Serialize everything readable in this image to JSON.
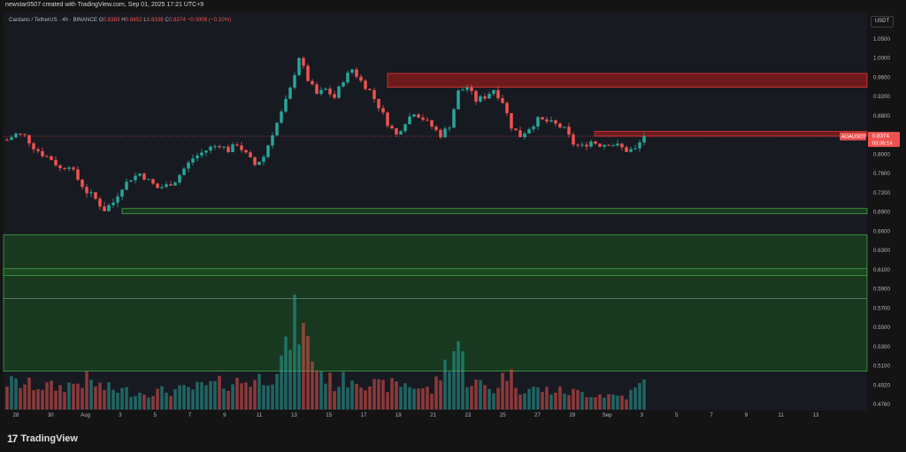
{
  "header": {
    "text": "newstar0507 created with TradingView.com, Sep 01, 2025 17:21 UTC+9"
  },
  "legend": {
    "symbol": "Cardano / TetherUS · 4h · BINANCE",
    "open_label": "O",
    "open": "0.8383",
    "high_label": "H",
    "high": "0.8452",
    "low_label": "L",
    "low": "0.8338",
    "close_label": "C",
    "close": "0.8374",
    "change": "−0.0008 (−0.10%)"
  },
  "axis": {
    "currency": "USDT"
  },
  "price_tag": {
    "symbol": "ADAUSDT",
    "price": "0.8374",
    "countdown": "03:38:14"
  },
  "footer": {
    "brand": "TradingView",
    "mark": "17"
  },
  "colors": {
    "up": "#26a69a",
    "down": "#ef5350",
    "background": "#181a21",
    "zone_green": "#1b5e20",
    "zone_red": "#b71c1c"
  },
  "chart_data": {
    "type": "candlestick",
    "interval": "4h",
    "ylim": [
      0.4666,
      1.0805
    ],
    "y_ticks": [
      "1.0500",
      "1.0000",
      "0.9600",
      "0.9200",
      "0.8800",
      "0.8400",
      "0.8000",
      "0.7600",
      "0.7200",
      "0.6900",
      "0.6600",
      "0.6300",
      "0.6100",
      "0.5900",
      "0.5700",
      "0.5500",
      "0.5300",
      "0.5100",
      "0.4920",
      "0.4760"
    ],
    "x_ticks": [
      "28",
      "30",
      "Aug",
      "3",
      "5",
      "7",
      "9",
      "11",
      "13",
      "15",
      "17",
      "19",
      "21",
      "23",
      "25",
      "27",
      "29",
      "Sep",
      "3",
      "5",
      "7",
      "9",
      "11",
      "13"
    ],
    "price_path": [
      [
        0,
        0.83
      ],
      [
        2,
        0.842
      ],
      [
        4,
        0.838
      ],
      [
        6,
        0.815
      ],
      [
        8,
        0.8
      ],
      [
        10,
        0.79
      ],
      [
        12,
        0.77
      ],
      [
        14,
        0.778
      ],
      [
        16,
        0.748
      ],
      [
        18,
        0.722
      ],
      [
        20,
        0.71
      ],
      [
        22,
        0.694
      ],
      [
        24,
        0.705
      ],
      [
        26,
        0.732
      ],
      [
        28,
        0.75
      ],
      [
        30,
        0.76
      ],
      [
        32,
        0.745
      ],
      [
        34,
        0.73
      ],
      [
        36,
        0.735
      ],
      [
        38,
        0.745
      ],
      [
        40,
        0.77
      ],
      [
        42,
        0.792
      ],
      [
        44,
        0.803
      ],
      [
        46,
        0.814
      ],
      [
        48,
        0.82
      ],
      [
        50,
        0.808
      ],
      [
        52,
        0.822
      ],
      [
        54,
        0.8
      ],
      [
        56,
        0.778
      ],
      [
        58,
        0.795
      ],
      [
        60,
        0.844
      ],
      [
        62,
        0.886
      ],
      [
        64,
        0.935
      ],
      [
        66,
        1.003
      ],
      [
        68,
        0.955
      ],
      [
        70,
        0.925
      ],
      [
        72,
        0.935
      ],
      [
        74,
        0.918
      ],
      [
        76,
        0.955
      ],
      [
        78,
        0.977
      ],
      [
        80,
        0.952
      ],
      [
        82,
        0.932
      ],
      [
        84,
        0.9
      ],
      [
        86,
        0.865
      ],
      [
        88,
        0.84
      ],
      [
        90,
        0.868
      ],
      [
        92,
        0.888
      ],
      [
        94,
        0.874
      ],
      [
        96,
        0.858
      ],
      [
        98,
        0.84
      ],
      [
        100,
        0.86
      ],
      [
        102,
        0.93
      ],
      [
        104,
        0.94
      ],
      [
        106,
        0.912
      ],
      [
        108,
        0.92
      ],
      [
        110,
        0.935
      ],
      [
        112,
        0.91
      ],
      [
        114,
        0.858
      ],
      [
        116,
        0.838
      ],
      [
        118,
        0.855
      ],
      [
        120,
        0.872
      ],
      [
        122,
        0.868
      ],
      [
        124,
        0.862
      ],
      [
        126,
        0.852
      ],
      [
        128,
        0.822
      ],
      [
        130,
        0.816
      ],
      [
        132,
        0.827
      ],
      [
        134,
        0.82
      ],
      [
        136,
        0.823
      ],
      [
        138,
        0.818
      ],
      [
        140,
        0.808
      ],
      [
        142,
        0.81
      ],
      [
        144,
        0.8374
      ]
    ],
    "volume_profile": [
      [
        0,
        0.31
      ],
      [
        6,
        0.27
      ],
      [
        12,
        0.25
      ],
      [
        18,
        0.33
      ],
      [
        22,
        0.24
      ],
      [
        30,
        0.19
      ],
      [
        40,
        0.22
      ],
      [
        48,
        0.29
      ],
      [
        56,
        0.33
      ],
      [
        60,
        0.4
      ],
      [
        63,
        0.64
      ],
      [
        65,
        1.0
      ],
      [
        67,
        0.86
      ],
      [
        70,
        0.47
      ],
      [
        74,
        0.28
      ],
      [
        78,
        0.37
      ],
      [
        84,
        0.26
      ],
      [
        90,
        0.29
      ],
      [
        96,
        0.21
      ],
      [
        102,
        0.77
      ],
      [
        104,
        0.34
      ],
      [
        110,
        0.22
      ],
      [
        113,
        0.43
      ],
      [
        116,
        0.24
      ],
      [
        124,
        0.21
      ],
      [
        134,
        0.17
      ],
      [
        140,
        0.15
      ],
      [
        144,
        0.3
      ]
    ],
    "candle_count": 145,
    "zones": [
      {
        "color": "red",
        "from": 0.9395,
        "to": 0.9682
      },
      {
        "color": "red",
        "from": 0.8377,
        "to": 0.8475
      },
      {
        "color": "green",
        "from": 0.6872,
        "to": 0.6954
      },
      {
        "color": "green",
        "from": 0.505,
        "to": 0.6545
      },
      {
        "color": "green",
        "from": 0.604,
        "to": 0.611
      }
    ],
    "reference_lines": [
      0.58
    ]
  }
}
